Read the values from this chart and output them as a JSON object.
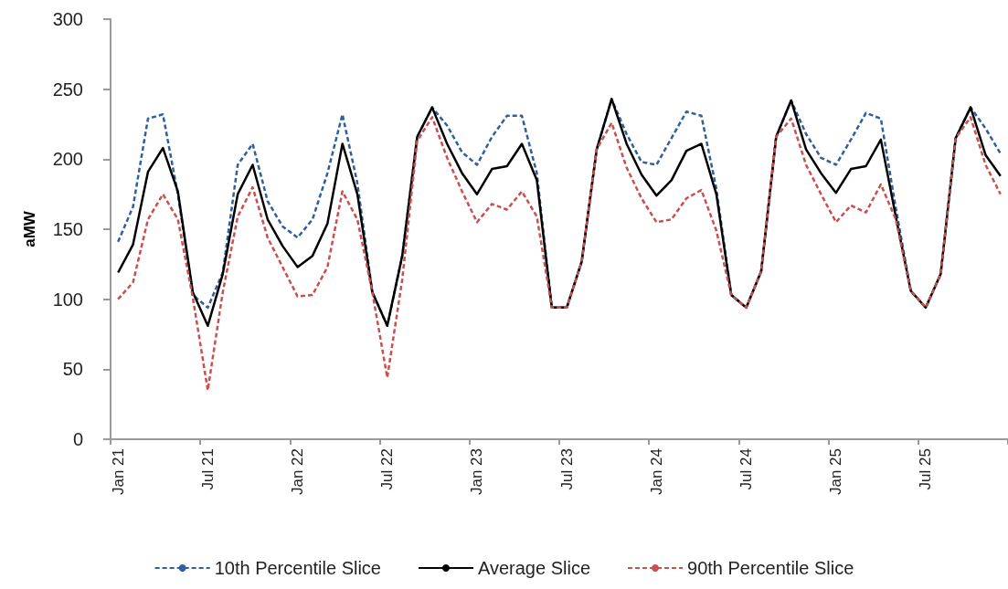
{
  "chart_data": {
    "type": "line",
    "ylabel": "aMW",
    "categories": [
      "Jan 21",
      null,
      null,
      null,
      null,
      null,
      "Jul 21",
      null,
      null,
      null,
      null,
      null,
      "Jan 22",
      null,
      null,
      null,
      null,
      null,
      "Jul 22",
      null,
      null,
      null,
      null,
      null,
      "Jan 23",
      null,
      null,
      null,
      null,
      null,
      "Jul 23",
      null,
      null,
      null,
      null,
      null,
      "Jan 24",
      null,
      null,
      null,
      null,
      null,
      "Jul 24",
      null,
      null,
      null,
      null,
      null,
      "Jan 25",
      null,
      null,
      null,
      null,
      null,
      "Jul 25",
      null,
      null,
      null,
      null,
      null
    ],
    "series": [
      {
        "name": "10th Percentile Slice",
        "color": "#2f5f9e",
        "line_style": "dashed",
        "values": [
          141,
          166,
          229,
          232,
          175,
          103,
          94,
          119,
          196,
          211,
          170,
          152,
          144,
          157,
          190,
          232,
          183,
          105,
          81,
          131,
          216,
          237,
          224,
          205,
          196,
          216,
          231,
          231,
          190,
          94,
          94,
          127,
          207,
          243,
          218,
          198,
          196,
          215,
          234,
          231,
          179,
          103,
          94,
          120,
          216,
          242,
          218,
          201,
          196,
          214,
          233,
          229,
          165,
          106,
          94,
          118,
          215,
          237,
          222,
          204
        ]
      },
      {
        "name": "Average Slice",
        "color": "#000000",
        "line_style": "solid",
        "values": [
          119,
          139,
          191,
          208,
          177,
          105,
          81,
          118,
          175,
          196,
          157,
          138,
          123,
          131,
          154,
          211,
          175,
          105,
          81,
          131,
          216,
          237,
          211,
          190,
          175,
          193,
          195,
          211,
          185,
          94,
          94,
          127,
          207,
          243,
          211,
          189,
          174,
          185,
          206,
          211,
          175,
          103,
          94,
          120,
          216,
          242,
          207,
          190,
          176,
          193,
          195,
          214,
          159,
          106,
          94,
          118,
          215,
          237,
          203,
          188
        ]
      },
      {
        "name": "90th Percentile Slice",
        "color": "#c9504d",
        "line_style": "dashed",
        "values": [
          100,
          112,
          157,
          175,
          157,
          101,
          35,
          105,
          159,
          180,
          144,
          123,
          102,
          103,
          123,
          177,
          157,
          105,
          44,
          114,
          213,
          230,
          201,
          177,
          155,
          168,
          164,
          177,
          159,
          94,
          94,
          127,
          207,
          226,
          194,
          172,
          155,
          157,
          172,
          178,
          149,
          103,
          94,
          120,
          216,
          229,
          196,
          175,
          155,
          167,
          162,
          182,
          157,
          106,
          94,
          118,
          215,
          230,
          196,
          175
        ]
      }
    ],
    "ylim": [
      0,
      300
    ],
    "yticks": [
      0,
      50,
      100,
      150,
      200,
      250,
      300
    ],
    "grid": false,
    "legend": "bottom",
    "marker": "none"
  }
}
